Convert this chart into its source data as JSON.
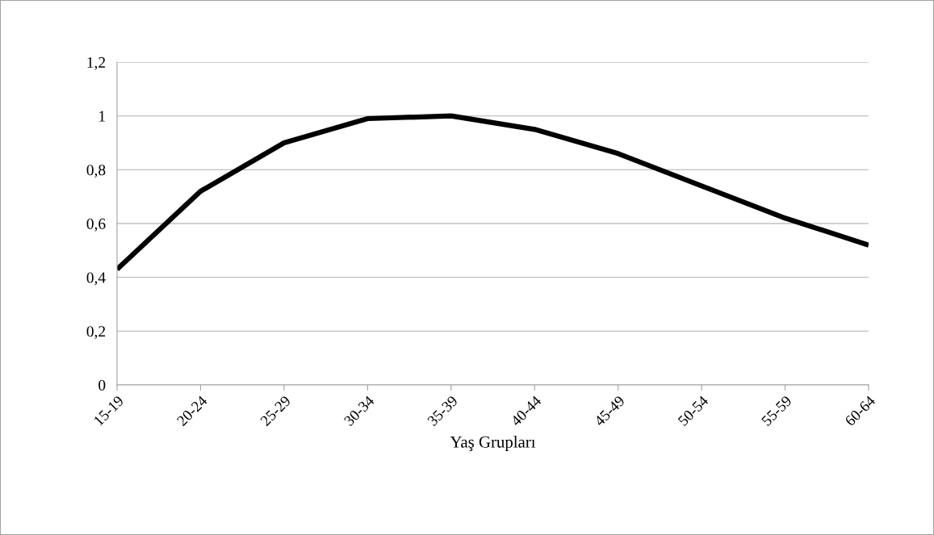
{
  "chart_data": {
    "type": "line",
    "xlabel": "Yaş Grupları",
    "categories": [
      "15-19",
      "20-24",
      "25-29",
      "30-34",
      "35-39",
      "40-44",
      "45-49",
      "50-54",
      "55-59",
      "60-64"
    ],
    "series": [
      {
        "color": "#000000",
        "values": [
          0.43,
          0.72,
          0.9,
          0.99,
          1.0,
          0.95,
          0.86,
          0.74,
          0.62,
          0.52
        ]
      }
    ],
    "ylim": [
      0,
      1.2
    ],
    "yticks": [
      0,
      {
        "value": 0.2,
        "label": "0,2"
      },
      {
        "value": 0.4,
        "label": "0,4"
      },
      {
        "value": 0.6,
        "label": "0,6"
      },
      {
        "value": 0.8,
        "label": "0,8"
      },
      1,
      {
        "value": 1.2,
        "label": "1,2"
      }
    ],
    "grid": "y",
    "legend": false,
    "marker": "none",
    "line_style": "solid"
  }
}
